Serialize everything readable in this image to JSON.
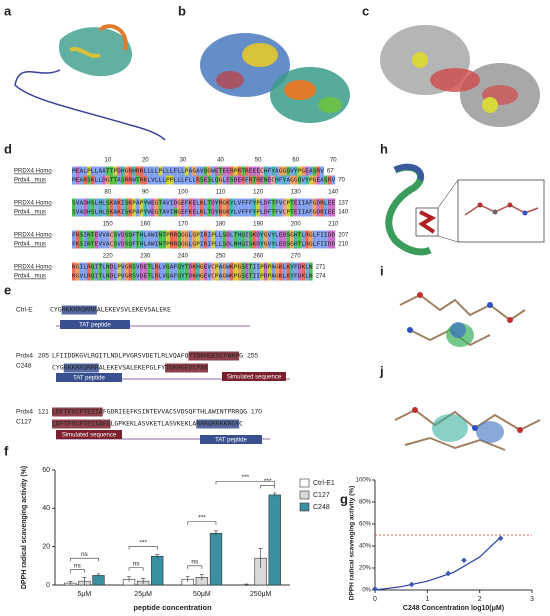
{
  "panels": {
    "a": "a",
    "b": "b",
    "c": "c",
    "d": "d",
    "e": "e",
    "f": "f",
    "g": "g",
    "h": "h",
    "i": "i",
    "j": "j"
  },
  "alignment": {
    "names": [
      "PRDX4 Homo",
      "Prdx4 _mus"
    ],
    "rows": [
      {
        "positions": [
          10,
          20,
          30,
          40,
          50,
          60,
          70
        ],
        "seqs": [
          "MEALPLLAATTPDHGRHRRLLLLPLLLFLLPAGAVQGWETEERPRTREEECHFYAGGQVYPGEASRV",
          "MEARSKLLDGTTASRRWTRKLVLLLPPLLLFLLRSESLQGLESDERFRTRENECHFYAGGQVYPGEASRV"
        ],
        "ends": [
          67,
          70
        ]
      },
      {
        "positions": [
          80,
          90,
          100,
          110,
          120,
          130,
          140
        ],
        "seqs": [
          "SVADHSLHLSKAKISKPAPYWEGTAVIDGEFKELKLTDYRGKYLVFFFYPLDFTFVCPTEIIAFGDRLEE",
          "SVADHSLHLSKAKISKPAPYWEGTAVINGEFKELKLTDYRGKYLVFFFYPLDFTFVCPTEIIAFGDRIEE"
        ],
        "ends": [
          137,
          140
        ]
      },
      {
        "positions": [
          150,
          160,
          170,
          180,
          190,
          200,
          210
        ],
        "seqs": [
          "FRSINTEVVACSVDSQFTHLAWINTPRRQGGLGPIRIPLLSDLTHQISKDYGVYLEDSGHTLRGLFIIDD",
          "FKSINTEVVACSVDSQFTHLAWINTPRRQGGLGPIRIPLLSDLNHQISKDYGVYLEDSGHTLRGLFIIDD"
        ],
        "ends": [
          207,
          210
        ]
      },
      {
        "positions": [
          220,
          230,
          240,
          250,
          260,
          270
        ],
        "seqs": [
          "KGILRQITLNDLPVGRSVDETLRLVQAFQYTDKHGEVCPAGWKPGSETIIPDPAGKLKYFDKLN",
          "KGVLRQITLNDLPVGRSVDETLRLVQAFQYTDKHGEVCPAGWKPGSETIIPDPAGKLKYFDKLN"
        ],
        "ends": [
          271,
          274
        ]
      }
    ]
  },
  "peptides": [
    {
      "name": [
        "Ctrl-E"
      ],
      "lines": [
        "CYGRKKRRQRRRALEKEVSVLEKEVSALEKE"
      ],
      "boxes": [
        "TAT peptide"
      ]
    },
    {
      "name": [
        "Prdx4",
        "C248"
      ],
      "start": 205,
      "end": 255,
      "lines": [
        "LFIIDDKGVLRQITLNDLPVGRSVDETLRLVQAFQYTDKHGEVCPAKPG",
        "CYGRKKRRQRRRALEKEVSALEKEPGLFYTDKHGEVCPAK"
      ],
      "boxes": [
        "TAT peptide",
        "Simulated sequence"
      ]
    },
    {
      "name": [
        "Prdx4",
        "C127"
      ],
      "start": 121,
      "end": 170,
      "lines": [
        "LDFTFVCPTEIIAFGDRIEEFKSINTEVVACSVDSQFTHLAWINTPRRQG",
        "LDFTFVCPTEIIAFGLGPKEKLASVKETLASVKEKLARRRQRRKKRGYC"
      ],
      "boxes": [
        "Simulated sequence",
        "TAT peptide"
      ]
    }
  ],
  "chart_data": [
    {
      "type": "bar",
      "ylabel": "DPPH radical scavenging activity (%)",
      "xlabel": "peptide concentration",
      "categories": [
        "5μM",
        "25μM",
        "50μM",
        "250μM"
      ],
      "series": [
        {
          "name": "Ctrl-E1",
          "color": "#ffffff",
          "values": [
            1,
            3,
            3,
            0
          ],
          "errors": [
            0.8,
            1.5,
            1.5,
            0.5
          ]
        },
        {
          "name": "C127",
          "color": "#d9d9d9",
          "values": [
            2,
            2,
            4,
            14
          ],
          "errors": [
            2,
            1.5,
            1.5,
            5
          ]
        },
        {
          "name": "C248",
          "color": "#3a8fa0",
          "values": [
            5,
            15,
            27,
            47
          ],
          "errors": [
            0.8,
            0.8,
            1.2,
            1
          ]
        }
      ],
      "annotations": [
        "ns",
        "ns",
        "ns",
        "***",
        "ns",
        "***",
        "***",
        "***"
      ],
      "ylim": [
        0,
        60
      ],
      "yticks": [
        0,
        20,
        40,
        60
      ]
    },
    {
      "type": "scatter",
      "ylabel": "DPPH radical scavenging activity (%)",
      "xlabel": "C248 Concentration log10(μM)",
      "x": [
        0,
        0.7,
        1.4,
        1.7,
        2.4
      ],
      "values": [
        1,
        5,
        15,
        27,
        47
      ],
      "color": "#3b5bb5",
      "fit": {
        "x": [
          0,
          0.5,
          1,
          1.5,
          2,
          2.4
        ],
        "values": [
          0,
          3,
          8,
          16,
          30,
          48
        ],
        "color": "#2b3fa0"
      },
      "reference_line": 50,
      "reference_color": "#c0392b",
      "xlim": [
        0,
        3
      ],
      "xticks": [
        0,
        1,
        2,
        3
      ],
      "ylim": [
        0,
        100
      ],
      "yticks": [
        {
          "value": 0,
          "label": "0%"
        },
        {
          "value": 20,
          "label": "20%"
        },
        {
          "value": 40,
          "label": "40%"
        },
        {
          "value": 60,
          "label": "60%"
        },
        {
          "value": 80,
          "label": "80%"
        },
        {
          "value": 100,
          "label": "100%"
        }
      ]
    }
  ]
}
